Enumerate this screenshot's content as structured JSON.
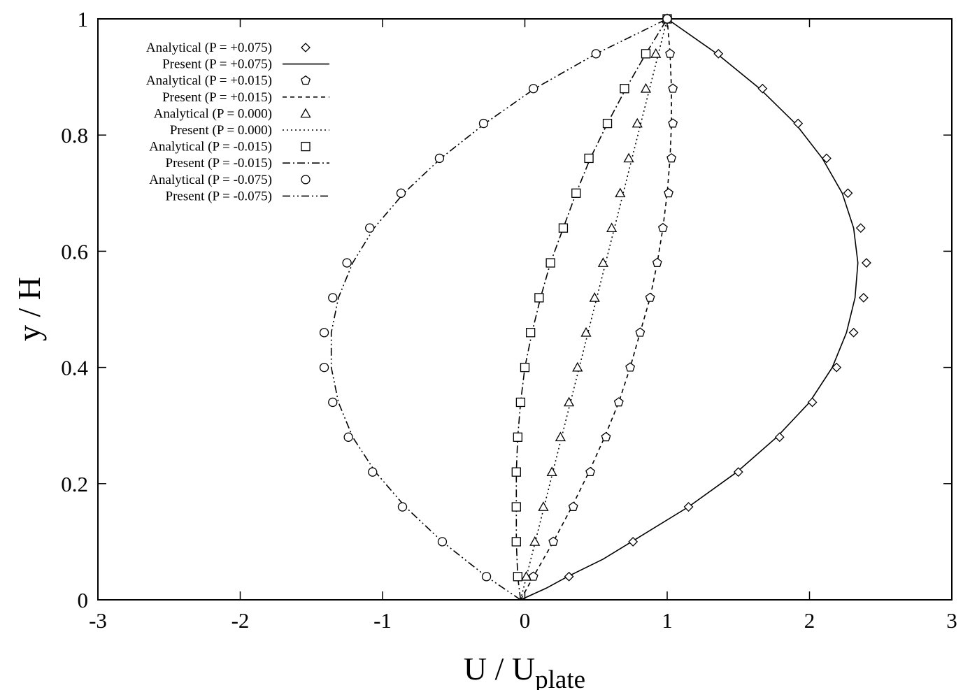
{
  "chart_data": {
    "type": "line",
    "xlabel": "U / U",
    "xlabel_sub": "plate",
    "ylabel": "y / H",
    "xlim": [
      -3,
      3
    ],
    "ylim": [
      0,
      1
    ],
    "xticks": [
      -3,
      -2,
      -1,
      0,
      1,
      2,
      3
    ],
    "xtick_labels": [
      "-3",
      "-2",
      "-1",
      "0",
      "1",
      "2",
      "3"
    ],
    "yticks": [
      0,
      0.2,
      0.4,
      0.6,
      0.8,
      1
    ],
    "ytick_labels": [
      "0",
      "0.2",
      "0.4",
      "0.6",
      "0.8",
      "1"
    ],
    "grid": false,
    "legend_position": "top-left",
    "legend": [
      {
        "label": "Analytical (P = +0.075)",
        "kind": "marker",
        "marker": "diamond"
      },
      {
        "label": "Present (P = +0.075)",
        "kind": "line",
        "dash": "solid"
      },
      {
        "label": "Analytical (P = +0.015)",
        "kind": "marker",
        "marker": "pentagon"
      },
      {
        "label": "Present (P = +0.015)",
        "kind": "line",
        "dash": "dashed"
      },
      {
        "label": "Analytical (P = 0.000)",
        "kind": "marker",
        "marker": "triangle"
      },
      {
        "label": "Present (P = 0.000)",
        "kind": "line",
        "dash": "dotted"
      },
      {
        "label": "Analytical (P = -0.015)",
        "kind": "marker",
        "marker": "square"
      },
      {
        "label": "Present (P = -0.015)",
        "kind": "line",
        "dash": "dashdot"
      },
      {
        "label": "Analytical (P = -0.075)",
        "kind": "marker",
        "marker": "circle"
      },
      {
        "label": "Present (P = -0.075)",
        "kind": "line",
        "dash": "dashdotdot"
      }
    ],
    "line_colors": {
      "all": "#000000"
    },
    "series": [
      {
        "name": "Analytical (P = +0.075)",
        "kind": "marker",
        "marker": "diamond",
        "points": [
          [
            0.31,
            0.04
          ],
          [
            0.76,
            0.1
          ],
          [
            1.15,
            0.16
          ],
          [
            1.5,
            0.22
          ],
          [
            1.79,
            0.28
          ],
          [
            2.02,
            0.34
          ],
          [
            2.19,
            0.4
          ],
          [
            2.31,
            0.46
          ],
          [
            2.38,
            0.52
          ],
          [
            2.4,
            0.58
          ],
          [
            2.36,
            0.64
          ],
          [
            2.27,
            0.7
          ],
          [
            2.12,
            0.76
          ],
          [
            1.92,
            0.82
          ],
          [
            1.67,
            0.88
          ],
          [
            1.36,
            0.94
          ],
          [
            1.0,
            1.0
          ]
        ]
      },
      {
        "name": "Present (P = +0.075)",
        "kind": "line",
        "dash": "solid",
        "points": [
          [
            -0.03,
            0.0
          ],
          [
            0.15,
            0.02
          ],
          [
            0.3,
            0.04
          ],
          [
            0.55,
            0.07
          ],
          [
            0.75,
            0.1
          ],
          [
            1.15,
            0.16
          ],
          [
            1.49,
            0.22
          ],
          [
            1.77,
            0.28
          ],
          [
            2.0,
            0.34
          ],
          [
            2.16,
            0.4
          ],
          [
            2.26,
            0.46
          ],
          [
            2.32,
            0.52
          ],
          [
            2.34,
            0.58
          ],
          [
            2.31,
            0.64
          ],
          [
            2.23,
            0.7
          ],
          [
            2.09,
            0.76
          ],
          [
            1.9,
            0.82
          ],
          [
            1.65,
            0.88
          ],
          [
            1.35,
            0.94
          ],
          [
            1.0,
            1.0
          ]
        ]
      },
      {
        "name": "Analytical (P = +0.015)",
        "kind": "marker",
        "marker": "pentagon",
        "points": [
          [
            0.06,
            0.04
          ],
          [
            0.2,
            0.1
          ],
          [
            0.34,
            0.16
          ],
          [
            0.46,
            0.22
          ],
          [
            0.57,
            0.28
          ],
          [
            0.66,
            0.34
          ],
          [
            0.74,
            0.4
          ],
          [
            0.81,
            0.46
          ],
          [
            0.88,
            0.52
          ],
          [
            0.93,
            0.58
          ],
          [
            0.97,
            0.64
          ],
          [
            1.01,
            0.7
          ],
          [
            1.03,
            0.76
          ],
          [
            1.04,
            0.82
          ],
          [
            1.04,
            0.88
          ],
          [
            1.02,
            0.94
          ],
          [
            1.0,
            1.0
          ]
        ]
      },
      {
        "name": "Present (P = +0.015)",
        "kind": "line",
        "dash": "dashed",
        "points": [
          [
            -0.03,
            0.0
          ],
          [
            0.06,
            0.04
          ],
          [
            0.2,
            0.1
          ],
          [
            0.33,
            0.16
          ],
          [
            0.45,
            0.22
          ],
          [
            0.56,
            0.28
          ],
          [
            0.66,
            0.34
          ],
          [
            0.74,
            0.4
          ],
          [
            0.81,
            0.46
          ],
          [
            0.88,
            0.52
          ],
          [
            0.93,
            0.58
          ],
          [
            0.97,
            0.64
          ],
          [
            1.0,
            0.7
          ],
          [
            1.02,
            0.76
          ],
          [
            1.03,
            0.82
          ],
          [
            1.03,
            0.88
          ],
          [
            1.02,
            0.94
          ],
          [
            1.0,
            1.0
          ]
        ]
      },
      {
        "name": "Analytical (P = 0.000)",
        "kind": "marker",
        "marker": "triangle",
        "points": [
          [
            0.01,
            0.04
          ],
          [
            0.07,
            0.1
          ],
          [
            0.13,
            0.16
          ],
          [
            0.19,
            0.22
          ],
          [
            0.25,
            0.28
          ],
          [
            0.31,
            0.34
          ],
          [
            0.37,
            0.4
          ],
          [
            0.43,
            0.46
          ],
          [
            0.49,
            0.52
          ],
          [
            0.55,
            0.58
          ],
          [
            0.61,
            0.64
          ],
          [
            0.67,
            0.7
          ],
          [
            0.73,
            0.76
          ],
          [
            0.79,
            0.82
          ],
          [
            0.85,
            0.88
          ],
          [
            0.92,
            0.94
          ],
          [
            1.0,
            1.0
          ]
        ]
      },
      {
        "name": "Present (P = 0.000)",
        "kind": "line",
        "dash": "dotted",
        "points": [
          [
            -0.03,
            0.0
          ],
          [
            1.0,
            1.0
          ]
        ]
      },
      {
        "name": "Analytical (P = -0.015)",
        "kind": "marker",
        "marker": "square",
        "points": [
          [
            -0.05,
            0.04
          ],
          [
            -0.06,
            0.1
          ],
          [
            -0.06,
            0.16
          ],
          [
            -0.06,
            0.22
          ],
          [
            -0.05,
            0.28
          ],
          [
            -0.03,
            0.34
          ],
          [
            0.0,
            0.4
          ],
          [
            0.04,
            0.46
          ],
          [
            0.1,
            0.52
          ],
          [
            0.18,
            0.58
          ],
          [
            0.27,
            0.64
          ],
          [
            0.36,
            0.7
          ],
          [
            0.45,
            0.76
          ],
          [
            0.58,
            0.82
          ],
          [
            0.7,
            0.88
          ],
          [
            0.85,
            0.94
          ],
          [
            1.0,
            1.0
          ]
        ]
      },
      {
        "name": "Present (P = -0.015)",
        "kind": "line",
        "dash": "dashdot",
        "points": [
          [
            -0.03,
            0.0
          ],
          [
            -0.05,
            0.04
          ],
          [
            -0.06,
            0.1
          ],
          [
            -0.06,
            0.16
          ],
          [
            -0.06,
            0.22
          ],
          [
            -0.05,
            0.28
          ],
          [
            -0.03,
            0.34
          ],
          [
            0.0,
            0.4
          ],
          [
            0.05,
            0.46
          ],
          [
            0.11,
            0.52
          ],
          [
            0.18,
            0.58
          ],
          [
            0.27,
            0.64
          ],
          [
            0.36,
            0.7
          ],
          [
            0.46,
            0.76
          ],
          [
            0.58,
            0.82
          ],
          [
            0.71,
            0.88
          ],
          [
            0.85,
            0.94
          ],
          [
            1.0,
            1.0
          ]
        ]
      },
      {
        "name": "Analytical (P = -0.075)",
        "kind": "marker",
        "marker": "circle",
        "points": [
          [
            -0.27,
            0.04
          ],
          [
            -0.58,
            0.1
          ],
          [
            -0.86,
            0.16
          ],
          [
            -1.07,
            0.22
          ],
          [
            -1.24,
            0.28
          ],
          [
            -1.35,
            0.34
          ],
          [
            -1.41,
            0.4
          ],
          [
            -1.41,
            0.46
          ],
          [
            -1.35,
            0.52
          ],
          [
            -1.25,
            0.58
          ],
          [
            -1.09,
            0.64
          ],
          [
            -0.87,
            0.7
          ],
          [
            -0.6,
            0.76
          ],
          [
            -0.29,
            0.82
          ],
          [
            0.06,
            0.88
          ],
          [
            0.5,
            0.94
          ],
          [
            1.0,
            1.0
          ]
        ]
      },
      {
        "name": "Present (P = -0.075)",
        "kind": "line",
        "dash": "dashdotdot",
        "points": [
          [
            -0.03,
            0.0
          ],
          [
            -0.27,
            0.04
          ],
          [
            -0.58,
            0.1
          ],
          [
            -0.84,
            0.16
          ],
          [
            -1.05,
            0.22
          ],
          [
            -1.21,
            0.28
          ],
          [
            -1.31,
            0.34
          ],
          [
            -1.36,
            0.4
          ],
          [
            -1.36,
            0.46
          ],
          [
            -1.31,
            0.52
          ],
          [
            -1.21,
            0.58
          ],
          [
            -1.06,
            0.64
          ],
          [
            -0.85,
            0.7
          ],
          [
            -0.59,
            0.76
          ],
          [
            -0.28,
            0.82
          ],
          [
            0.07,
            0.88
          ],
          [
            0.5,
            0.94
          ],
          [
            1.0,
            1.0
          ]
        ]
      }
    ]
  }
}
